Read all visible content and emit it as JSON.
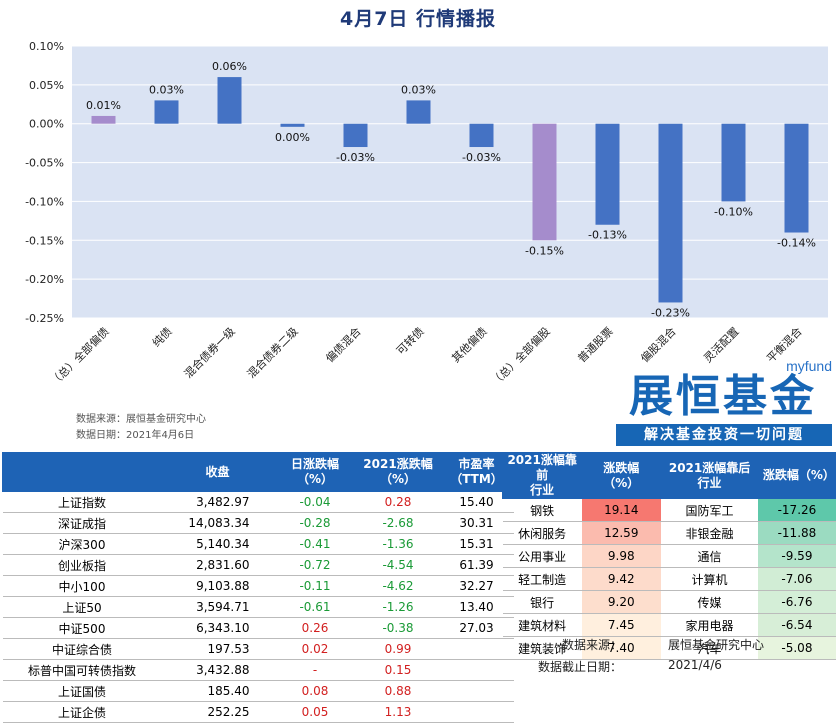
{
  "title": "4月7日  行情播报",
  "chart_data": {
    "type": "bar",
    "categories": [
      "（总）全部偏债",
      "纯债",
      "混合债券一级",
      "混合债券二级",
      "偏债混合",
      "可转债",
      "其他偏债",
      "（总）全部偏股",
      "普通股票",
      "偏股混合",
      "灵活配置",
      "平衡混合"
    ],
    "values": [
      0.01,
      0.03,
      0.06,
      -0.004,
      -0.03,
      0.03,
      -0.03,
      -0.15,
      -0.13,
      -0.23,
      -0.1,
      -0.14
    ],
    "data_labels": [
      "0.01%",
      "0.03%",
      "0.06%",
      "0.00%",
      "-0.03%",
      "0.03%",
      "-0.03%",
      "-0.15%",
      "-0.13%",
      "-0.23%",
      "-0.10%",
      "-0.14%"
    ],
    "highlight_indices": [
      0,
      7
    ],
    "ylim": [
      -0.25,
      0.1
    ],
    "yticks": [
      0.1,
      0.05,
      0.0,
      -0.05,
      -0.1,
      -0.15,
      -0.2,
      -0.25
    ],
    "ytick_labels": [
      "0.10%",
      "0.05%",
      "0.00%",
      "-0.05%",
      "-0.10%",
      "-0.15%",
      "-0.20%",
      "-0.25%"
    ],
    "colors": {
      "bar": "#4472c4",
      "highlight": "#a58ccc",
      "plot_bg": "#dae3f3"
    }
  },
  "source": {
    "line1": "数据来源：展恒基金研究中心",
    "line2": "数据日期：2021年4月6日"
  },
  "logo": {
    "tag": "myfund",
    "name": "展恒基金",
    "slogan": "解决基金投资一切问题"
  },
  "index_table": {
    "headers": [
      "",
      "收盘",
      "日涨跌幅\n（%）",
      "2021涨跌幅\n（%）",
      "市盈率\n（TTM）"
    ],
    "rows": [
      {
        "name": "上证指数",
        "close": "3,482.97",
        "day": "-0.04",
        "ytd": "0.28",
        "pe": "15.40"
      },
      {
        "name": "深证成指",
        "close": "14,083.34",
        "day": "-0.28",
        "ytd": "-2.68",
        "pe": "30.31"
      },
      {
        "name": "沪深300",
        "close": "5,140.34",
        "day": "-0.41",
        "ytd": "-1.36",
        "pe": "15.31"
      },
      {
        "name": "创业板指",
        "close": "2,831.60",
        "day": "-0.72",
        "ytd": "-4.54",
        "pe": "61.39"
      },
      {
        "name": "中小100",
        "close": "9,103.88",
        "day": "-0.11",
        "ytd": "-4.62",
        "pe": "32.27"
      },
      {
        "name": "上证50",
        "close": "3,594.71",
        "day": "-0.61",
        "ytd": "-1.26",
        "pe": "13.40"
      },
      {
        "name": "中证500",
        "close": "6,343.10",
        "day": "0.26",
        "ytd": "-0.38",
        "pe": "27.03"
      },
      {
        "name": "中证综合债",
        "close": "197.53",
        "day": "0.02",
        "ytd": "0.99",
        "pe": ""
      },
      {
        "name": "标普中国可转债指数",
        "close": "3,432.88",
        "day": "-",
        "ytd": "0.15",
        "pe": ""
      },
      {
        "name": "上证国债",
        "close": "185.40",
        "day": "0.08",
        "ytd": "0.88",
        "pe": ""
      },
      {
        "name": "上证企债",
        "close": "252.25",
        "day": "0.05",
        "ytd": "1.13",
        "pe": ""
      }
    ]
  },
  "industry_table": {
    "headers": [
      "2021涨幅靠前\n行业",
      "涨跌幅\n（%）",
      "2021涨幅靠后\n行业",
      "涨跌幅（%）"
    ],
    "rows": [
      {
        "top": "钢铁",
        "top_v": "19.14",
        "bot": "国防军工",
        "bot_v": "-17.26"
      },
      {
        "top": "休闲服务",
        "top_v": "12.59",
        "bot": "非银金融",
        "bot_v": "-11.88"
      },
      {
        "top": "公用事业",
        "top_v": "9.98",
        "bot": "通信",
        "bot_v": "-9.59"
      },
      {
        "top": "轻工制造",
        "top_v": "9.42",
        "bot": "计算机",
        "bot_v": "-7.06"
      },
      {
        "top": "银行",
        "top_v": "9.20",
        "bot": "传媒",
        "bot_v": "-6.76"
      },
      {
        "top": "建筑材料",
        "top_v": "7.45",
        "bot": "家用电器",
        "bot_v": "-6.54"
      },
      {
        "top": "建筑装饰",
        "top_v": "7.40",
        "bot": "汽车",
        "bot_v": "-5.08"
      }
    ],
    "note_label1": "数据来源：",
    "note_value1": "展恒基金研究中心",
    "note_label2": "数据截止日期：",
    "note_value2": "2021/4/6"
  }
}
